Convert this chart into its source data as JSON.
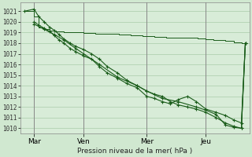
{
  "background_color": "#d0e8d0",
  "plot_bg_color": "#d8ecd8",
  "grid_color": "#aaccaa",
  "line_color": "#1a5c1a",
  "xlabel": "Pression niveau de la mer( hPa )",
  "ylim": [
    1009.5,
    1021.8
  ],
  "yticks": [
    1010,
    1011,
    1012,
    1013,
    1014,
    1015,
    1016,
    1017,
    1018,
    1019,
    1020,
    1021
  ],
  "xtick_labels": [
    "Mar",
    "Ven",
    "Mer",
    "Jeu"
  ],
  "xtick_positions": [
    12,
    75,
    155,
    230
  ],
  "smooth_line_x": [
    0,
    12,
    18,
    25,
    32,
    40,
    50,
    60,
    75,
    90,
    105,
    120,
    135,
    150,
    165,
    180,
    200,
    220,
    230,
    240,
    255,
    265,
    275,
    280
  ],
  "smooth_line_y": [
    1021.0,
    1020.5,
    1019.5,
    1019.3,
    1019.2,
    1019.1,
    1019.05,
    1019.0,
    1018.95,
    1018.9,
    1018.85,
    1018.8,
    1018.7,
    1018.65,
    1018.6,
    1018.55,
    1018.5,
    1018.45,
    1018.4,
    1018.3,
    1018.2,
    1018.1,
    1018.0,
    1018.0
  ],
  "line1_x": [
    0,
    12,
    18,
    25,
    32,
    38,
    44,
    50,
    58,
    65,
    75,
    85,
    95,
    105,
    118,
    130,
    143,
    155,
    165,
    175,
    185,
    195,
    207,
    218,
    230,
    243,
    255,
    265,
    275,
    280
  ],
  "line1_y": [
    1021.0,
    1021.2,
    1020.5,
    1020.0,
    1019.5,
    1019.2,
    1018.8,
    1018.4,
    1018.0,
    1017.7,
    1017.4,
    1017.0,
    1016.5,
    1015.8,
    1015.2,
    1014.5,
    1014.0,
    1013.5,
    1013.2,
    1013.0,
    1012.5,
    1012.2,
    1012.0,
    1011.8,
    1011.5,
    1011.0,
    1010.5,
    1010.2,
    1010.0,
    1018.0
  ],
  "line2_x": [
    12,
    18,
    25,
    32,
    38,
    44,
    50,
    58,
    65,
    75,
    85,
    95,
    105,
    118,
    130,
    143,
    155,
    165,
    175,
    185,
    195,
    207,
    218,
    230,
    243,
    255,
    265,
    275,
    280
  ],
  "line2_y": [
    1020.0,
    1019.7,
    1019.4,
    1019.1,
    1018.7,
    1018.3,
    1018.0,
    1017.5,
    1017.2,
    1016.8,
    1016.5,
    1015.8,
    1015.2,
    1014.7,
    1014.2,
    1013.8,
    1013.0,
    1012.8,
    1012.5,
    1012.3,
    1012.7,
    1013.0,
    1012.5,
    1011.8,
    1011.5,
    1011.2,
    1010.8,
    1010.5,
    1018.0
  ],
  "line3_x": [
    12,
    25,
    38,
    50,
    65,
    75,
    95,
    118,
    143,
    155,
    175,
    195,
    218,
    230,
    243,
    255,
    265,
    275,
    280
  ],
  "line3_y": [
    1019.8,
    1019.3,
    1018.8,
    1018.3,
    1017.5,
    1017.0,
    1016.0,
    1014.8,
    1014.0,
    1013.5,
    1012.8,
    1012.5,
    1012.0,
    1011.7,
    1011.3,
    1010.3,
    1010.1,
    1010.0,
    1018.0
  ]
}
